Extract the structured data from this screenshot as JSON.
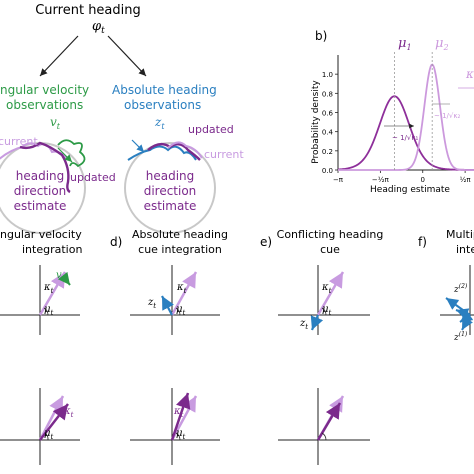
{
  "top": {
    "title": "Current heading",
    "phi": "φ",
    "phi_sub": "t",
    "ang_line1": "ngular velocity",
    "ang_line2": "observations",
    "v": "v",
    "v_sub": "t",
    "abs_line1": "Absolute heading",
    "abs_line2": "observations",
    "z": "z",
    "z_sub": "t",
    "current_left": "current",
    "updated_left": "updated",
    "updated_right": "updated",
    "current_right": "current",
    "circle_left": [
      "heading",
      "direction",
      "estimate"
    ],
    "circle_right": [
      "heading",
      "direction",
      "estimate"
    ]
  },
  "panel_b": {
    "letter": "b)",
    "ylabel": "Probability density",
    "xlabel": "Heading estimate",
    "yticks": [
      "1.0",
      "0.8",
      "0.6",
      "0.4",
      "0.2",
      "0.0"
    ],
    "xticks": [
      "−π",
      "−½π",
      "0",
      "½π"
    ],
    "mu1": "μ",
    "mu1_sub": "1",
    "mu2": "μ",
    "mu2_sub": "2",
    "kappa_partial": "κ",
    "sigma1": "~ 1/√κ₁",
    "sigma2": "~ 1/√κ₂"
  },
  "chart_data": {
    "type": "line",
    "xlabel": "Heading estimate",
    "ylabel": "Probability density",
    "ylim": [
      0,
      1.2
    ],
    "xlim": [
      -3.14159,
      1.9
    ],
    "series": [
      {
        "mu": -1.05,
        "kappa": 3.3,
        "color": "#8e2f9a",
        "peak": 0.77
      },
      {
        "mu": 0.35,
        "kappa": 12.0,
        "color": "#cc99dd",
        "peak": 1.1
      }
    ]
  },
  "bottom": {
    "c_title1": "ngular velocity",
    "c_title2": "integration",
    "d_letter": "d)",
    "d_title1": "Absolute heading",
    "d_title2": "cue integration",
    "e_letter": "e)",
    "e_title1": "Conflicting heading",
    "e_title2": "cue",
    "f_letter": "f)",
    "f_title1": "Multiple h",
    "f_title2": "integ",
    "kappa": "κ",
    "mu": "μ",
    "z": "z",
    "v": "v",
    "t": "t",
    "z2": "(2)",
    "z1": "(1)"
  },
  "colors": {
    "dark_purple": "#7b2a8c",
    "light_purple": "#c89be0",
    "green": "#2c9a46",
    "blue": "#2a7fc0",
    "grey": "#9b9b9b"
  }
}
